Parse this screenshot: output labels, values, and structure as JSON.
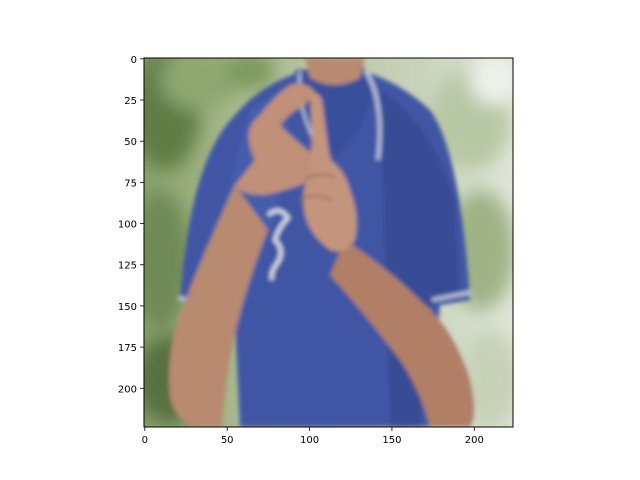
{
  "figure": {
    "image_description": "photo of a person in a blue polo shirt making a hand sign with both hands in front of the chest",
    "colors": {
      "shirt": "#3f56a4",
      "skin": "#b88a70",
      "foliage": "#7c9a60",
      "background_light": "#d8dfd0"
    }
  },
  "axes": {
    "x_ticks": [
      "0",
      "50",
      "100",
      "150",
      "200"
    ],
    "y_ticks": [
      "0",
      "25",
      "50",
      "75",
      "100",
      "125",
      "150",
      "175",
      "200"
    ],
    "x_tick_values": [
      0,
      50,
      100,
      150,
      200
    ],
    "y_tick_values": [
      0,
      25,
      50,
      75,
      100,
      125,
      150,
      175,
      200
    ],
    "xlim": [
      -0.5,
      223.5
    ],
    "ylim": [
      223.5,
      -0.5
    ]
  }
}
